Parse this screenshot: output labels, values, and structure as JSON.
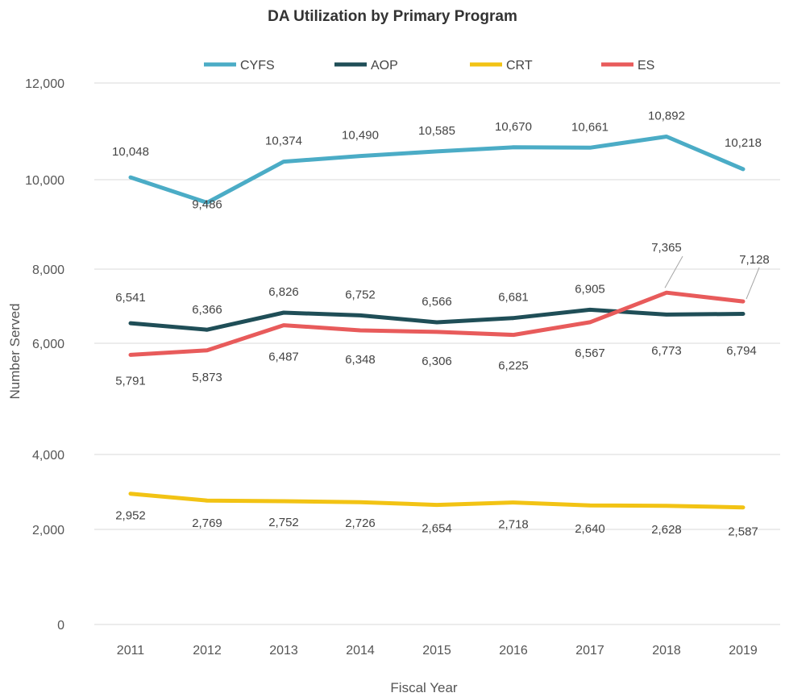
{
  "chart_data": {
    "type": "line",
    "title": "DA Utilization by Primary Program",
    "xlabel": "Fiscal Year",
    "ylabel": "Number Served",
    "categories": [
      "2011",
      "2012",
      "2013",
      "2014",
      "2015",
      "2016",
      "2017",
      "2018",
      "2019"
    ],
    "y_ticks": [
      "0",
      "2,000",
      "4,000",
      "6,000",
      "8,000",
      "10,000",
      "12,000"
    ],
    "legend_position": "top",
    "grid": true,
    "series": [
      {
        "name": "CYFS",
        "color": "#4bacc6",
        "values": [
          10048,
          9486,
          10374,
          10490,
          10585,
          10670,
          10661,
          10892,
          10218
        ],
        "labels": [
          "10,048",
          "9,486",
          "10,374",
          "10,490",
          "10,585",
          "10,670",
          "10,661",
          "10,892",
          "10,218"
        ]
      },
      {
        "name": "AOP",
        "color": "#1f4e57",
        "values": [
          6541,
          6366,
          6826,
          6752,
          6566,
          6681,
          6905,
          6773,
          6794
        ],
        "labels": [
          "6,541",
          "6,366",
          "6,826",
          "6,752",
          "6,566",
          "6,681",
          "6,905",
          "6,773",
          "6,794"
        ]
      },
      {
        "name": "CRT",
        "color": "#f2c314",
        "values": [
          2952,
          2769,
          2752,
          2726,
          2654,
          2718,
          2640,
          2628,
          2587
        ],
        "labels": [
          "2,952",
          "2,769",
          "2,752",
          "2,726",
          "2,654",
          "2,718",
          "2,640",
          "2,628",
          "2,587"
        ]
      },
      {
        "name": "ES",
        "color": "#e85b5b",
        "values": [
          5791,
          5873,
          6487,
          6348,
          6306,
          6225,
          6567,
          7365,
          7128
        ],
        "labels": [
          "5,791",
          "5,873",
          "6,487",
          "6,348",
          "6,306",
          "6,225",
          "6,567",
          "7,365",
          "7,128"
        ]
      }
    ]
  }
}
